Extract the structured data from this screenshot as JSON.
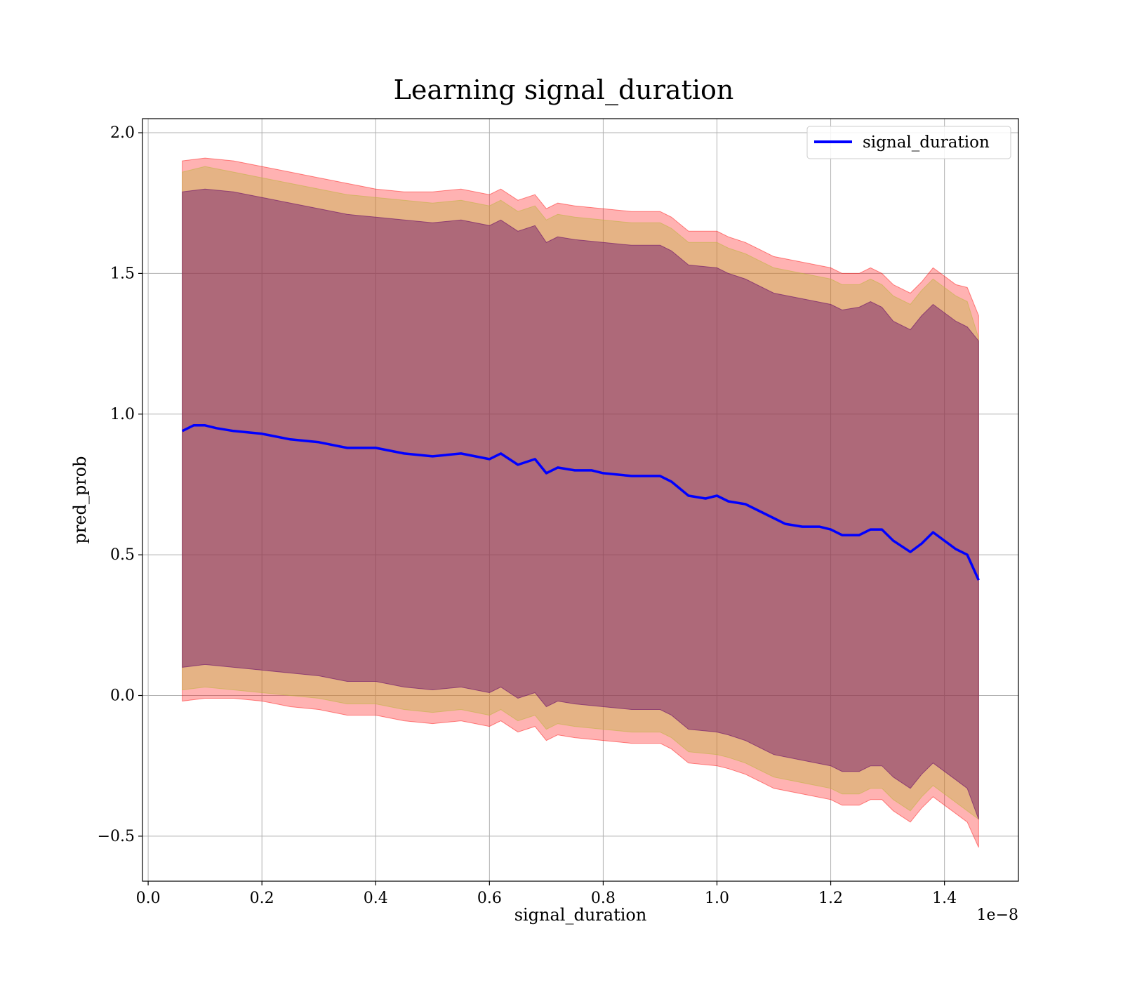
{
  "chart_data": {
    "type": "area",
    "title": "Learning signal_duration",
    "xlabel": "signal_duration",
    "ylabel": "pred_prob",
    "x_offset_label": "1e−8",
    "xlim": [
      -0.01,
      1.53
    ],
    "ylim": [
      -0.66,
      2.05
    ],
    "grid": true,
    "legend_position": "top-right",
    "x_ticks": [
      0.0,
      0.2,
      0.4,
      0.6,
      0.8,
      1.0,
      1.2,
      1.4
    ],
    "x_tick_labels": [
      "0.0",
      "0.2",
      "0.4",
      "0.6",
      "0.8",
      "1.0",
      "1.2",
      "1.4"
    ],
    "y_ticks": [
      2.0,
      1.5,
      1.0,
      0.5,
      0.0,
      -0.5
    ],
    "y_tick_labels": [
      "2.0",
      "1.5",
      "1.0",
      "0.5",
      "0.0",
      "−0.5"
    ],
    "series": [
      {
        "name": "signal_duration",
        "color": "#0000ff",
        "x": [
          0.06,
          0.08,
          0.1,
          0.12,
          0.15,
          0.2,
          0.25,
          0.3,
          0.35,
          0.4,
          0.45,
          0.5,
          0.55,
          0.6,
          0.62,
          0.65,
          0.68,
          0.7,
          0.72,
          0.75,
          0.78,
          0.8,
          0.85,
          0.88,
          0.9,
          0.92,
          0.95,
          0.98,
          1.0,
          1.02,
          1.05,
          1.08,
          1.1,
          1.12,
          1.15,
          1.18,
          1.2,
          1.22,
          1.25,
          1.27,
          1.29,
          1.31,
          1.34,
          1.36,
          1.38,
          1.42,
          1.44,
          1.46
        ],
        "y": [
          0.94,
          0.96,
          0.96,
          0.95,
          0.94,
          0.93,
          0.91,
          0.9,
          0.88,
          0.88,
          0.86,
          0.85,
          0.86,
          0.84,
          0.86,
          0.82,
          0.84,
          0.79,
          0.81,
          0.8,
          0.8,
          0.79,
          0.78,
          0.78,
          0.78,
          0.76,
          0.71,
          0.7,
          0.71,
          0.69,
          0.68,
          0.65,
          0.63,
          0.61,
          0.6,
          0.6,
          0.59,
          0.57,
          0.57,
          0.59,
          0.59,
          0.55,
          0.51,
          0.54,
          0.58,
          0.52,
          0.5,
          0.41
        ]
      }
    ],
    "bands": [
      {
        "color": "#ff0000",
        "opacity": 0.3,
        "x": [
          0.06,
          0.1,
          0.15,
          0.2,
          0.25,
          0.3,
          0.35,
          0.4,
          0.45,
          0.5,
          0.55,
          0.6,
          0.62,
          0.65,
          0.68,
          0.7,
          0.72,
          0.75,
          0.8,
          0.85,
          0.9,
          0.92,
          0.95,
          1.0,
          1.02,
          1.05,
          1.08,
          1.1,
          1.15,
          1.2,
          1.22,
          1.25,
          1.27,
          1.29,
          1.31,
          1.34,
          1.36,
          1.38,
          1.42,
          1.44,
          1.46
        ],
        "upper": [
          1.9,
          1.91,
          1.9,
          1.88,
          1.86,
          1.84,
          1.82,
          1.8,
          1.79,
          1.79,
          1.8,
          1.78,
          1.8,
          1.76,
          1.78,
          1.73,
          1.75,
          1.74,
          1.73,
          1.72,
          1.72,
          1.7,
          1.65,
          1.65,
          1.63,
          1.61,
          1.58,
          1.56,
          1.54,
          1.52,
          1.5,
          1.5,
          1.52,
          1.5,
          1.46,
          1.43,
          1.47,
          1.52,
          1.46,
          1.45,
          1.35
        ],
        "lower": [
          -0.02,
          -0.01,
          -0.01,
          -0.02,
          -0.04,
          -0.05,
          -0.07,
          -0.07,
          -0.09,
          -0.1,
          -0.09,
          -0.11,
          -0.09,
          -0.13,
          -0.11,
          -0.16,
          -0.14,
          -0.15,
          -0.16,
          -0.17,
          -0.17,
          -0.19,
          -0.24,
          -0.25,
          -0.26,
          -0.28,
          -0.31,
          -0.33,
          -0.35,
          -0.37,
          -0.39,
          -0.39,
          -0.37,
          -0.37,
          -0.41,
          -0.45,
          -0.4,
          -0.36,
          -0.42,
          -0.45,
          -0.54
        ]
      },
      {
        "color": "#bfb540",
        "opacity": 0.4,
        "x": [
          0.06,
          0.1,
          0.15,
          0.2,
          0.25,
          0.3,
          0.35,
          0.4,
          0.45,
          0.5,
          0.55,
          0.6,
          0.62,
          0.65,
          0.68,
          0.7,
          0.72,
          0.75,
          0.8,
          0.85,
          0.9,
          0.92,
          0.95,
          1.0,
          1.02,
          1.05,
          1.08,
          1.1,
          1.15,
          1.2,
          1.22,
          1.25,
          1.27,
          1.29,
          1.31,
          1.34,
          1.36,
          1.38,
          1.42,
          1.44,
          1.46
        ],
        "upper": [
          1.86,
          1.88,
          1.86,
          1.84,
          1.82,
          1.8,
          1.78,
          1.77,
          1.76,
          1.75,
          1.76,
          1.74,
          1.76,
          1.72,
          1.74,
          1.69,
          1.71,
          1.7,
          1.69,
          1.68,
          1.68,
          1.66,
          1.61,
          1.61,
          1.59,
          1.57,
          1.54,
          1.52,
          1.5,
          1.48,
          1.46,
          1.46,
          1.48,
          1.46,
          1.42,
          1.39,
          1.44,
          1.48,
          1.42,
          1.4,
          1.27
        ],
        "lower": [
          0.02,
          0.03,
          0.02,
          0.01,
          0.0,
          -0.01,
          -0.03,
          -0.03,
          -0.05,
          -0.06,
          -0.05,
          -0.07,
          -0.05,
          -0.09,
          -0.07,
          -0.12,
          -0.1,
          -0.11,
          -0.12,
          -0.13,
          -0.13,
          -0.15,
          -0.2,
          -0.21,
          -0.22,
          -0.24,
          -0.27,
          -0.29,
          -0.31,
          -0.33,
          -0.35,
          -0.35,
          -0.33,
          -0.33,
          -0.37,
          -0.41,
          -0.36,
          -0.32,
          -0.38,
          -0.41,
          -0.44
        ]
      },
      {
        "color": "#6b0f6b",
        "opacity": 0.45,
        "x": [
          0.06,
          0.1,
          0.15,
          0.2,
          0.25,
          0.3,
          0.35,
          0.4,
          0.45,
          0.5,
          0.55,
          0.6,
          0.62,
          0.65,
          0.68,
          0.7,
          0.72,
          0.75,
          0.8,
          0.85,
          0.9,
          0.92,
          0.95,
          1.0,
          1.02,
          1.05,
          1.08,
          1.1,
          1.15,
          1.2,
          1.22,
          1.25,
          1.27,
          1.29,
          1.31,
          1.34,
          1.36,
          1.38,
          1.42,
          1.44,
          1.46
        ],
        "upper": [
          1.79,
          1.8,
          1.79,
          1.77,
          1.75,
          1.73,
          1.71,
          1.7,
          1.69,
          1.68,
          1.69,
          1.67,
          1.69,
          1.65,
          1.67,
          1.61,
          1.63,
          1.62,
          1.61,
          1.6,
          1.6,
          1.58,
          1.53,
          1.52,
          1.5,
          1.48,
          1.45,
          1.43,
          1.41,
          1.39,
          1.37,
          1.38,
          1.4,
          1.38,
          1.33,
          1.3,
          1.35,
          1.39,
          1.33,
          1.31,
          1.26
        ],
        "lower": [
          0.1,
          0.11,
          0.1,
          0.09,
          0.08,
          0.07,
          0.05,
          0.05,
          0.03,
          0.02,
          0.03,
          0.01,
          0.03,
          -0.01,
          0.01,
          -0.04,
          -0.02,
          -0.03,
          -0.04,
          -0.05,
          -0.05,
          -0.07,
          -0.12,
          -0.13,
          -0.14,
          -0.16,
          -0.19,
          -0.21,
          -0.23,
          -0.25,
          -0.27,
          -0.27,
          -0.25,
          -0.25,
          -0.29,
          -0.33,
          -0.28,
          -0.24,
          -0.3,
          -0.33,
          -0.44
        ]
      }
    ]
  }
}
